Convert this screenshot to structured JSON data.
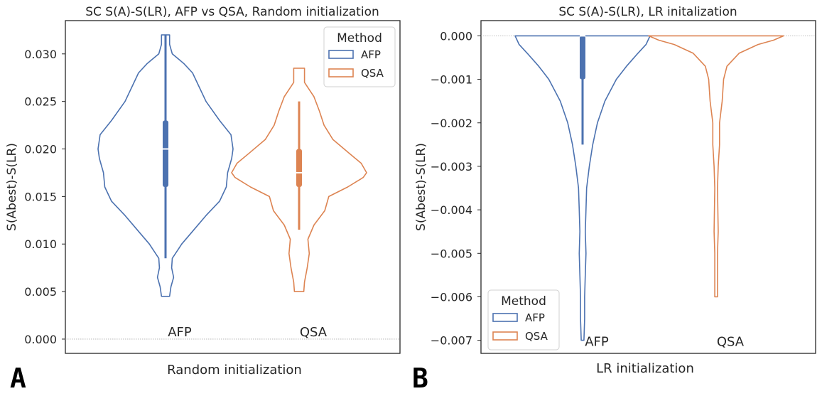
{
  "colors": {
    "afp": "#4c72b0",
    "qsa": "#dd8452",
    "axis": "#262626",
    "zero_line": "#aaaaaa"
  },
  "chart_data": [
    {
      "panel_label": "A",
      "type": "violin",
      "title": "SC S(A)-S(LR), AFP vs QSA, Random initialization",
      "xlabel": "Random initialization",
      "ylabel": "S(Abest)-S(LR)",
      "ylim": [
        -0.0015,
        0.0335
      ],
      "yticks": [
        0.0,
        0.005,
        0.01,
        0.015,
        0.02,
        0.025,
        0.03
      ],
      "ytick_labels": [
        "0.000",
        "0.005",
        "0.010",
        "0.015",
        "0.020",
        "0.025",
        "0.030"
      ],
      "zero_line": true,
      "legend": {
        "title": "Method",
        "position": "upper-right",
        "entries": [
          "AFP",
          "QSA"
        ]
      },
      "category_text_level": 0.0003,
      "series": [
        {
          "name": "AFP",
          "label": "AFP",
          "color_key": "afp",
          "min": 0.0045,
          "max": 0.032,
          "whisker": [
            0.0085,
            0.032
          ],
          "q1": 0.016,
          "q3": 0.023,
          "median": 0.02,
          "profile": [
            [
              0.0045,
              0.06
            ],
            [
              0.0055,
              0.08
            ],
            [
              0.0065,
              0.12
            ],
            [
              0.0075,
              0.09
            ],
            [
              0.0085,
              0.1
            ],
            [
              0.01,
              0.24
            ],
            [
              0.0115,
              0.42
            ],
            [
              0.013,
              0.6
            ],
            [
              0.0145,
              0.8
            ],
            [
              0.016,
              0.9
            ],
            [
              0.0175,
              0.92
            ],
            [
              0.019,
              0.98
            ],
            [
              0.02,
              1.0
            ],
            [
              0.0215,
              0.97
            ],
            [
              0.023,
              0.8
            ],
            [
              0.025,
              0.6
            ],
            [
              0.0265,
              0.5
            ],
            [
              0.028,
              0.4
            ],
            [
              0.029,
              0.27
            ],
            [
              0.03,
              0.1
            ],
            [
              0.031,
              0.06
            ],
            [
              0.032,
              0.06
            ]
          ]
        },
        {
          "name": "QSA",
          "label": "QSA",
          "color_key": "qsa",
          "min": 0.005,
          "max": 0.0285,
          "whisker": [
            0.0115,
            0.025
          ],
          "q1": 0.016,
          "q3": 0.02,
          "median": 0.0175,
          "profile": [
            [
              0.005,
              0.07
            ],
            [
              0.006,
              0.08
            ],
            [
              0.0075,
              0.12
            ],
            [
              0.009,
              0.15
            ],
            [
              0.0105,
              0.13
            ],
            [
              0.012,
              0.22
            ],
            [
              0.0135,
              0.38
            ],
            [
              0.015,
              0.44
            ],
            [
              0.016,
              0.72
            ],
            [
              0.017,
              0.95
            ],
            [
              0.0175,
              1.0
            ],
            [
              0.0185,
              0.92
            ],
            [
              0.0195,
              0.75
            ],
            [
              0.021,
              0.5
            ],
            [
              0.0225,
              0.37
            ],
            [
              0.024,
              0.3
            ],
            [
              0.0255,
              0.22
            ],
            [
              0.027,
              0.08
            ],
            [
              0.0285,
              0.08
            ]
          ]
        }
      ]
    },
    {
      "panel_label": "B",
      "type": "violin",
      "title": "SC S(A)-S(LR), LR initalization",
      "xlabel": "LR initialization",
      "ylabel": "S(Abest)-S(LR)",
      "ylim": [
        -0.0073,
        0.00035
      ],
      "yticks": [
        0.0,
        -0.001,
        -0.002,
        -0.003,
        -0.004,
        -0.005,
        -0.006,
        -0.007
      ],
      "ytick_labels": [
        "0.000",
        "−0.001",
        "−0.002",
        "−0.003",
        "−0.004",
        "−0.005",
        "−0.006",
        "−0.007"
      ],
      "zero_line": true,
      "legend": {
        "title": "Method",
        "position": "lower-left",
        "entries": [
          "AFP",
          "QSA"
        ]
      },
      "category_text_level": -0.00713,
      "series": [
        {
          "name": "AFP",
          "label": "AFP",
          "color_key": "afp",
          "min": -0.007,
          "max": 0.0,
          "whisker": [
            -0.0025,
            0.0
          ],
          "q1": -0.001,
          "q3": 0.0,
          "median": 0.0,
          "profile": [
            [
              -0.007,
              0.02
            ],
            [
              -0.0065,
              0.03
            ],
            [
              -0.006,
              0.03
            ],
            [
              -0.0055,
              0.04
            ],
            [
              -0.005,
              0.05
            ],
            [
              -0.0045,
              0.04
            ],
            [
              -0.004,
              0.05
            ],
            [
              -0.0035,
              0.06
            ],
            [
              -0.003,
              0.1
            ],
            [
              -0.0025,
              0.15
            ],
            [
              -0.002,
              0.22
            ],
            [
              -0.0015,
              0.33
            ],
            [
              -0.001,
              0.5
            ],
            [
              -0.0007,
              0.65
            ],
            [
              -0.0004,
              0.82
            ],
            [
              -0.0002,
              0.94
            ],
            [
              0.0,
              1.0
            ]
          ]
        },
        {
          "name": "QSA",
          "label": "QSA",
          "color_key": "qsa",
          "min": -0.006,
          "max": 0.0,
          "whisker": null,
          "q1": null,
          "q3": null,
          "median": null,
          "profile": [
            [
              -0.006,
              0.02
            ],
            [
              -0.005,
              0.02
            ],
            [
              -0.0045,
              0.03
            ],
            [
              -0.004,
              0.025
            ],
            [
              -0.0035,
              0.02
            ],
            [
              -0.003,
              0.03
            ],
            [
              -0.0025,
              0.05
            ],
            [
              -0.002,
              0.05
            ],
            [
              -0.0015,
              0.09
            ],
            [
              -0.001,
              0.11
            ],
            [
              -0.0007,
              0.16
            ],
            [
              -0.0004,
              0.34
            ],
            [
              -0.0002,
              0.62
            ],
            [
              -0.0001,
              0.85
            ],
            [
              0.0,
              1.0
            ]
          ]
        }
      ]
    }
  ]
}
